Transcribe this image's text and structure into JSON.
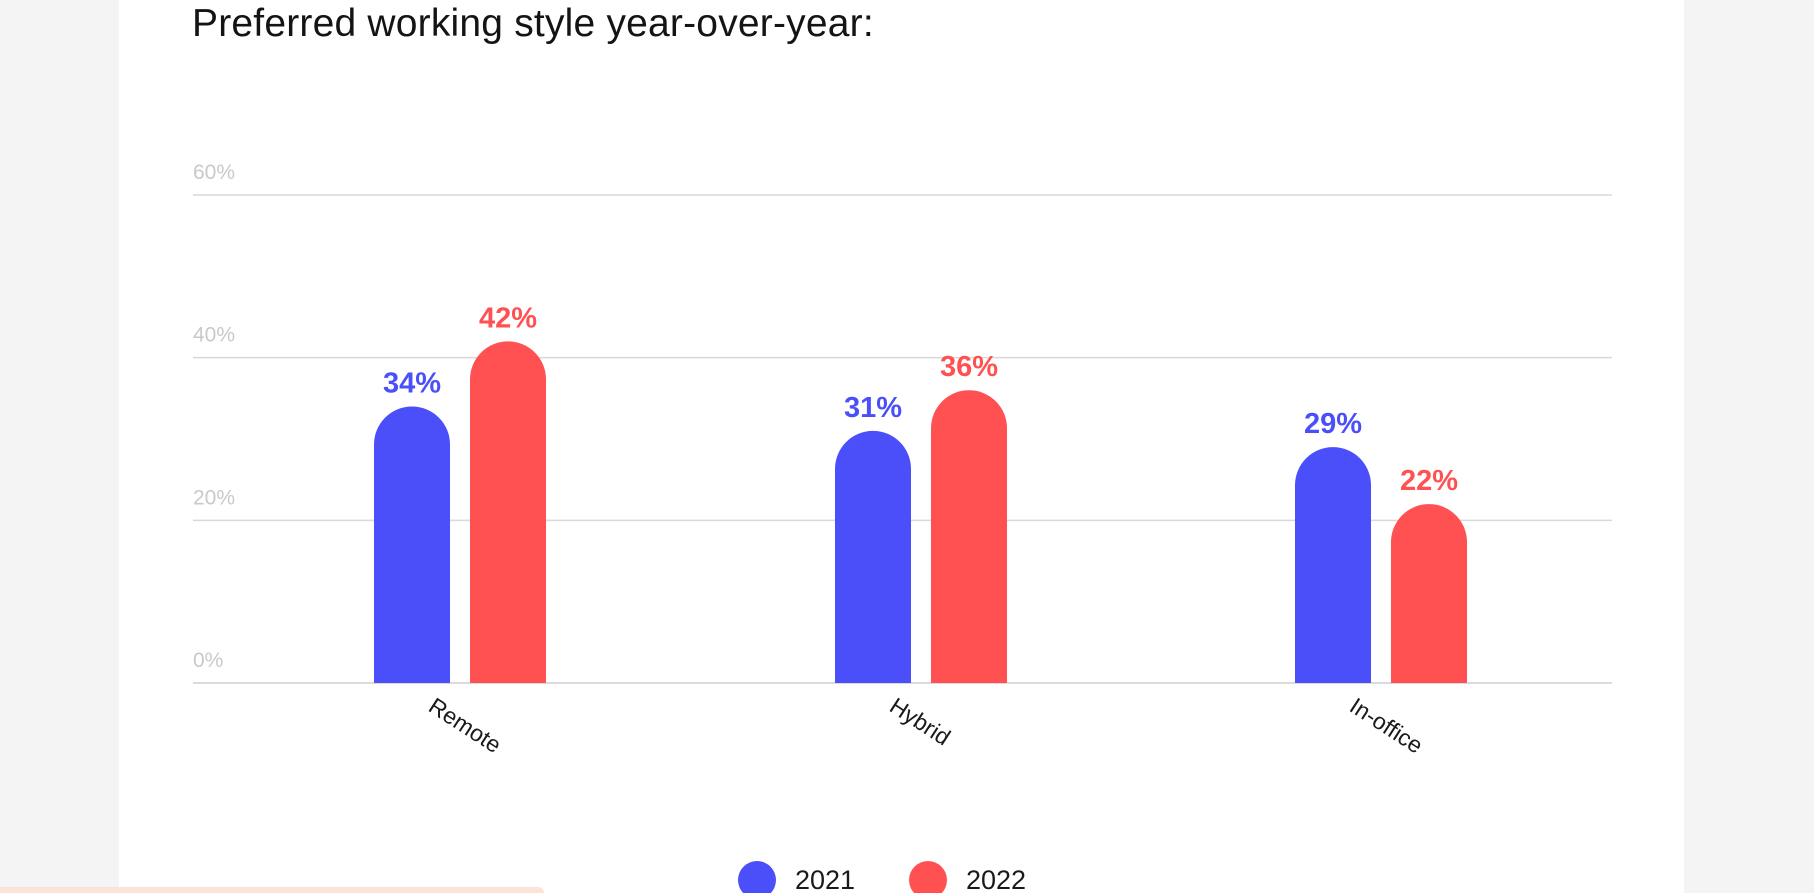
{
  "chart_data": {
    "type": "bar",
    "title": "Preferred working style year-over-year:",
    "categories": [
      "Remote",
      "Hybrid",
      "In-office"
    ],
    "series": [
      {
        "name": "2021",
        "color": "#4a4ff9",
        "values": [
          34,
          31,
          29
        ],
        "labels": [
          "34%",
          "31%",
          "29%"
        ]
      },
      {
        "name": "2022",
        "color": "#ff5152",
        "values": [
          42,
          36,
          22
        ],
        "labels": [
          "42%",
          "36%",
          "22%"
        ]
      }
    ],
    "ylim": [
      0,
      60
    ],
    "yticks": [
      0,
      20,
      40,
      60
    ],
    "ytick_labels": [
      "0%",
      "20%",
      "40%",
      "60%"
    ],
    "xlabel": "",
    "ylabel": "",
    "grid": true,
    "legend_position": "bottom-center"
  }
}
